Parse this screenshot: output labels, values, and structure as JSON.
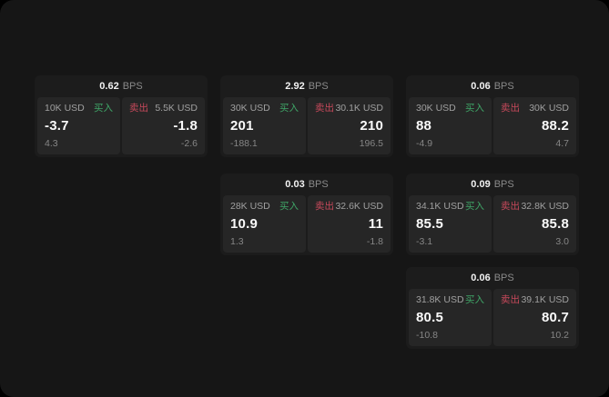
{
  "labels": {
    "bps_unit": "BPS",
    "buy": "买入",
    "sell": "卖出"
  },
  "colors": {
    "page_bg": "#161616",
    "card_bg": "#1c1c1c",
    "tile_bg": "#262626",
    "buy_green": "#3fa567",
    "sell_red": "#c7495b"
  },
  "cards": [
    {
      "col": 0,
      "row": 0,
      "bps": "0.62",
      "buy": {
        "amount": "10K USD",
        "value": "-3.7",
        "delta": "4.3"
      },
      "sell": {
        "amount": "5.5K USD",
        "value": "-1.8",
        "delta": "-2.6"
      }
    },
    {
      "col": 1,
      "row": 0,
      "bps": "2.92",
      "buy": {
        "amount": "30K USD",
        "value": "201",
        "delta": "-188.1"
      },
      "sell": {
        "amount": "30.1K USD",
        "value": "210",
        "delta": "196.5"
      }
    },
    {
      "col": 2,
      "row": 0,
      "bps": "0.06",
      "buy": {
        "amount": "30K USD",
        "value": "88",
        "delta": "-4.9"
      },
      "sell": {
        "amount": "30K USD",
        "value": "88.2",
        "delta": "4.7"
      }
    },
    {
      "col": 1,
      "row": 1,
      "bps": "0.03",
      "buy": {
        "amount": "28K USD",
        "value": "10.9",
        "delta": "1.3"
      },
      "sell": {
        "amount": "32.6K USD",
        "value": "11",
        "delta": "-1.8"
      }
    },
    {
      "col": 2,
      "row": 1,
      "bps": "0.09",
      "buy": {
        "amount": "34.1K USD",
        "value": "85.5",
        "delta": "-3.1"
      },
      "sell": {
        "amount": "32.8K USD",
        "value": "85.8",
        "delta": "3.0"
      }
    },
    {
      "col": 2,
      "row": 2,
      "bps": "0.06",
      "buy": {
        "amount": "31.8K USD",
        "value": "80.5",
        "delta": "-10.8"
      },
      "sell": {
        "amount": "39.1K USD",
        "value": "80.7",
        "delta": "10.2"
      }
    }
  ]
}
